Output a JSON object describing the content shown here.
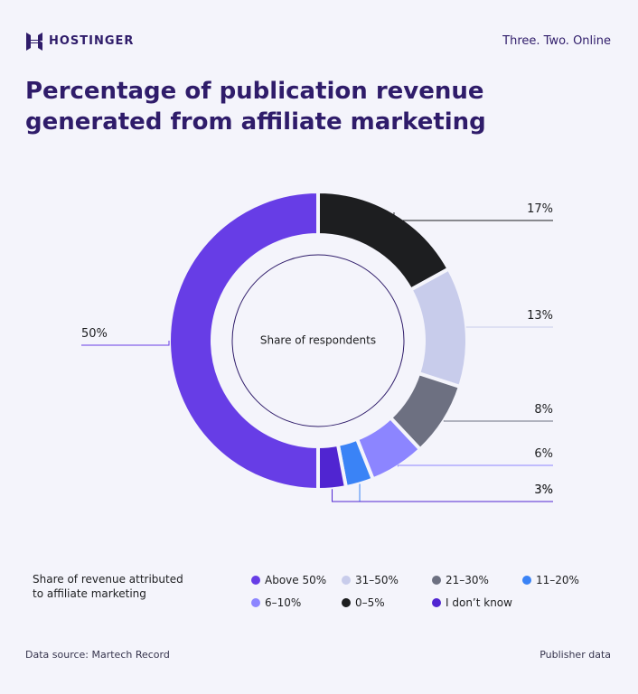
{
  "header": {
    "brand": "HOSTINGER",
    "tagline": "Three. Two. Online"
  },
  "chart_data": {
    "type": "donut",
    "title": "Percentage of publication revenue generated from affiliate marketing",
    "center_label": "Share of respondents",
    "legend_title": "Share of revenue attributed to affiliate marketing",
    "categories": [
      "0–5%",
      "31–50%",
      "21–30%",
      "6–10%",
      "11–20%",
      "I don’t know",
      "Above 50%"
    ],
    "values": [
      17,
      13,
      8,
      6,
      3,
      3,
      50
    ],
    "value_labels": [
      "17%",
      "13%",
      "8%",
      "6%",
      "3%",
      "3%",
      "50%"
    ],
    "colors": [
      "#1d1e20",
      "#c8cceb",
      "#6d7081",
      "#8c85ff",
      "#3a83f6",
      "#5025d1",
      "#673de6"
    ]
  },
  "footer": {
    "source": "Data source: Martech Record",
    "note": "Publisher data"
  }
}
